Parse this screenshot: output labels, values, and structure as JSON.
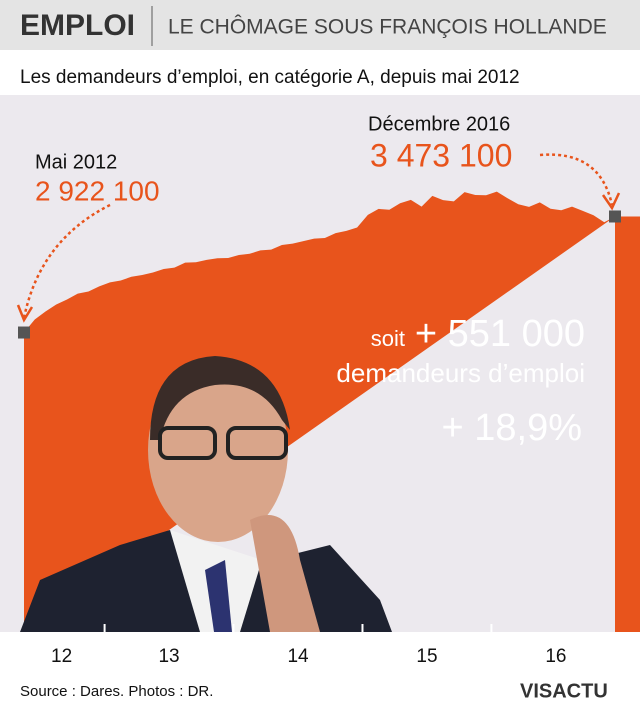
{
  "header": {
    "section": "EMPLOI",
    "title": "LE CHÔMAGE SOUS FRANÇOIS HOLLANDE"
  },
  "chart_data": {
    "type": "area",
    "subtitle": "Les demandeurs d’emploi, en catégorie A, depuis mai 2012",
    "color": "#e8541c",
    "categories": [
      null,
      null,
      null,
      null,
      null,
      null,
      null,
      null,
      null,
      null,
      null,
      null,
      null,
      null,
      null,
      null,
      null,
      null,
      null,
      null,
      null,
      null,
      null,
      null,
      null,
      null,
      null,
      null,
      null,
      null,
      null,
      null,
      null,
      null,
      null,
      null,
      null,
      null,
      null,
      null,
      null,
      null,
      null,
      null,
      null,
      null,
      null,
      null,
      null,
      null,
      null,
      null,
      null,
      null,
      null,
      null
    ],
    "values": [
      2922100,
      2984000,
      3022000,
      3055000,
      3079000,
      3107000,
      3117000,
      3141000,
      3160000,
      3169000,
      3187000,
      3195000,
      3207000,
      3224000,
      3230000,
      3254000,
      3256000,
      3267000,
      3275000,
      3276000,
      3290000,
      3296000,
      3312000,
      3316000,
      3338000,
      3344000,
      3356000,
      3368000,
      3371000,
      3394000,
      3405000,
      3421000,
      3481000,
      3509000,
      3505000,
      3536000,
      3552000,
      3520000,
      3571000,
      3551000,
      3545000,
      3589000,
      3575000,
      3574000,
      3591000,
      3560000,
      3531000,
      3519000,
      3540000,
      3510000,
      3503000,
      3520000,
      3500000,
      3479000,
      3446000,
      3473100
    ],
    "value_labels": [
      "2 922 100",
      null,
      null,
      null,
      null,
      null,
      null,
      null,
      null,
      null,
      null,
      null,
      null,
      null,
      null,
      null,
      null,
      null,
      null,
      null,
      null,
      null,
      null,
      null,
      null,
      null,
      null,
      null,
      null,
      null,
      null,
      null,
      null,
      null,
      null,
      null,
      null,
      null,
      null,
      null,
      null,
      null,
      null,
      null,
      null,
      null,
      null,
      null,
      null,
      null,
      null,
      null,
      null,
      null,
      null,
      "3 473 100"
    ],
    "annotations": {
      "start": "Mai 2012",
      "end": "Décembre 2016",
      "soit": "soit",
      "change": "+ 551 000",
      "unit": "demandeurs d’emploi",
      "percent": "+ 18,9%"
    },
    "year_labels": [
      "12",
      "13",
      "14",
      "15",
      "16"
    ],
    "ylim": [
      1500000,
      4050000
    ]
  },
  "footer": {
    "source": "Source : Dares. Photos : DR.",
    "logo": "VISACTU"
  }
}
